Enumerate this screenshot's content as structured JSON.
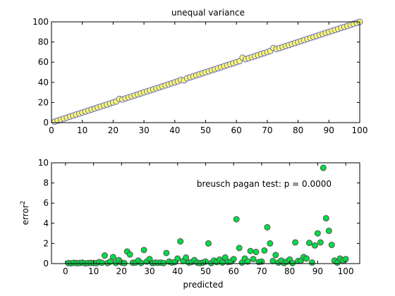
{
  "chart_data": [
    {
      "type": "scatter",
      "title": "unequal variance",
      "xlabel": "",
      "ylabel": "",
      "xlim": [
        0,
        100
      ],
      "ylim": [
        0,
        100
      ],
      "xticks": [
        0,
        10,
        20,
        30,
        40,
        50,
        60,
        70,
        80,
        90,
        100
      ],
      "yticks": [
        0,
        20,
        40,
        60,
        80,
        100
      ],
      "grid": false,
      "marker_fill": "#ffff66",
      "marker_edge": "#6666cc",
      "series": [
        {
          "x": [
            1,
            2,
            3,
            4,
            5,
            6,
            7,
            8,
            9,
            10,
            11,
            12,
            13,
            14,
            15,
            16,
            17,
            18,
            19,
            20,
            21,
            22,
            23,
            24,
            25,
            26,
            27,
            28,
            29,
            30,
            31,
            32,
            33,
            34,
            35,
            36,
            37,
            38,
            39,
            40,
            41,
            42,
            43,
            44,
            45,
            46,
            47,
            48,
            49,
            50,
            51,
            52,
            53,
            54,
            55,
            56,
            57,
            58,
            59,
            60,
            61,
            62,
            63,
            64,
            65,
            66,
            67,
            68,
            69,
            70,
            71,
            72,
            73,
            74,
            75,
            76,
            77,
            78,
            79,
            80,
            81,
            82,
            83,
            84,
            85,
            86,
            87,
            88,
            89,
            90,
            91,
            92,
            93,
            94,
            95,
            96,
            97,
            98,
            99,
            100
          ],
          "y": [
            1,
            2,
            3,
            4,
            5,
            6,
            7,
            8,
            9,
            10,
            11,
            12,
            13,
            14,
            15,
            16,
            17,
            18,
            19,
            20,
            21,
            23.5,
            23,
            24,
            25,
            26,
            27,
            28,
            29,
            30,
            31,
            32,
            33,
            34,
            35,
            36,
            37,
            38,
            39,
            40,
            41,
            42.5,
            42,
            44,
            45,
            46,
            47,
            48,
            49,
            50,
            51,
            52,
            53,
            54,
            55,
            56,
            57,
            58,
            59,
            60,
            61,
            64.5,
            63,
            64,
            65,
            66,
            67,
            68,
            69,
            70,
            71,
            74,
            73,
            74,
            75,
            76,
            77,
            78,
            79,
            80,
            81,
            82,
            83,
            84,
            85,
            86,
            87,
            88,
            89,
            90,
            91,
            92,
            93,
            94,
            95,
            96,
            97,
            98,
            99,
            100
          ]
        }
      ]
    },
    {
      "type": "scatter",
      "title": "",
      "xlabel": "predicted",
      "ylabel": "error²",
      "ylabel_base": "error",
      "ylabel_sup": "2",
      "annotation": "breusch pagan test: p = 0.0000",
      "xlim": [
        -5,
        105
      ],
      "ylim": [
        0,
        10
      ],
      "xticks": [
        0,
        10,
        20,
        30,
        40,
        50,
        60,
        70,
        80,
        90,
        100
      ],
      "yticks": [
        0,
        2,
        4,
        6,
        8,
        10
      ],
      "grid": false,
      "marker_fill": "#00dd44",
      "marker_edge": "#555555",
      "series": [
        {
          "x": [
            1,
            2,
            3,
            4,
            5,
            6,
            7,
            8,
            9,
            10,
            11,
            12,
            13,
            14,
            15,
            16,
            17,
            18,
            19,
            20,
            21,
            22,
            23,
            24,
            25,
            26,
            27,
            28,
            29,
            30,
            31,
            32,
            33,
            34,
            35,
            36,
            37,
            38,
            39,
            40,
            41,
            42,
            43,
            44,
            45,
            46,
            47,
            48,
            49,
            50,
            51,
            52,
            53,
            54,
            55,
            56,
            57,
            58,
            59,
            60,
            61,
            62,
            63,
            64,
            65,
            66,
            67,
            68,
            69,
            70,
            71,
            72,
            73,
            74,
            75,
            76,
            77,
            78,
            79,
            80,
            81,
            82,
            83,
            84,
            85,
            86,
            87,
            88,
            89,
            90,
            91,
            92,
            93,
            94,
            95,
            96,
            97,
            98,
            99,
            100
          ],
          "y": [
            0.05,
            0.03,
            0.08,
            0.04,
            0.06,
            0.1,
            0.02,
            0.05,
            0.07,
            0.05,
            0.04,
            0.15,
            0.08,
            0.8,
            0.05,
            0.2,
            0.65,
            0.06,
            0.35,
            0.1,
            0.05,
            1.2,
            0.9,
            0.08,
            0.1,
            0.3,
            0.06,
            1.35,
            0.2,
            0.45,
            0.05,
            0.1,
            0.08,
            0.1,
            0.05,
            1.05,
            0.2,
            0.1,
            0.15,
            0.5,
            2.2,
            0.25,
            0.6,
            0.1,
            0.15,
            0.35,
            0.1,
            0.05,
            0.1,
            0.2,
            2.0,
            0.05,
            0.3,
            0.15,
            0.4,
            0.1,
            0.6,
            0.15,
            0.2,
            0.45,
            4.4,
            1.55,
            0.1,
            0.5,
            0.2,
            1.25,
            0.45,
            1.15,
            0.15,
            0.2,
            1.3,
            3.6,
            2.0,
            0.25,
            0.85,
            0.1,
            0.3,
            0.05,
            0.2,
            0.4,
            0.05,
            2.1,
            0.25,
            0.3,
            0.65,
            0.5,
            2.05,
            0.1,
            1.8,
            3.0,
            2.1,
            9.5,
            4.5,
            3.25,
            1.85,
            0.3,
            0.1,
            0.5,
            0.3,
            0.45
          ]
        }
      ]
    }
  ]
}
